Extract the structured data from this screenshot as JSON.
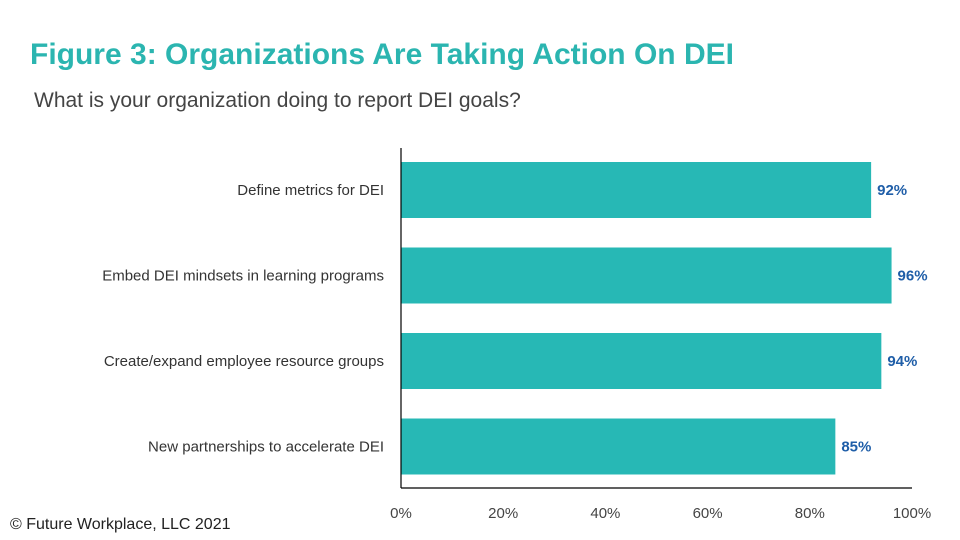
{
  "title": "Figure 3: Organizations Are Taking Action On DEI",
  "subtitle": "What is your organization doing to report DEI goals?",
  "footer": "© Future Workplace, LLC 2021",
  "colors": {
    "bar": "#27b8b5",
    "title": "#2bb5b0",
    "value_label": "#1f5ea8"
  },
  "chart_data": {
    "type": "bar",
    "orientation": "horizontal",
    "categories": [
      "Define metrics for DEI",
      "Embed DEI mindsets in learning programs",
      "Create/expand employee resource groups",
      "New partnerships to accelerate DEI"
    ],
    "values": [
      92,
      96,
      94,
      85
    ],
    "data_labels": [
      "92%",
      "96%",
      "94%",
      "85%"
    ],
    "xlim": [
      0,
      100
    ],
    "xticks": [
      0,
      20,
      40,
      60,
      80,
      100
    ],
    "xtick_labels": [
      "0%",
      "20%",
      "40%",
      "60%",
      "80%",
      "100%"
    ],
    "grid": false,
    "legend": "none"
  }
}
